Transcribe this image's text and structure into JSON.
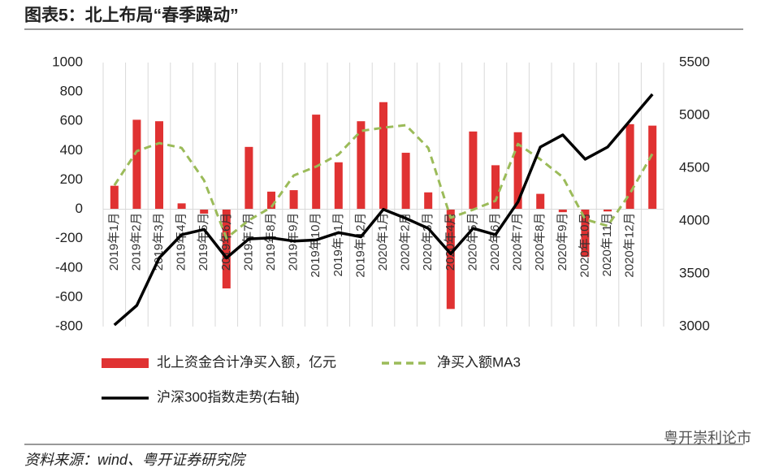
{
  "chart_data": {
    "type": "combo",
    "title": "图表5：北上布局“春季躁动”",
    "source": "资料来源：wind、粤开证券研究院",
    "watermark": "粤开崇利论市",
    "categories": [
      "2019年1月",
      "2019年2月",
      "2019年3月",
      "2019年4月",
      "2019年5月",
      "2019年6月",
      "2019年7月",
      "2019年8月",
      "2019年9月",
      "2019年10月",
      "2019年11月",
      "2019年12月",
      "2020年1月",
      "2020年2月",
      "2020年3月",
      "2020年4月",
      "2020年5月",
      "2020年6月",
      "2020年7月",
      "2020年8月",
      "2020年9月",
      "2020年10月",
      "2020年11月",
      "2020年12月",
      null
    ],
    "series": [
      {
        "name": "北上资金合计净买入额，亿元",
        "type": "bar",
        "color": "#e03232",
        "values": [
          160,
          610,
          600,
          40,
          -30,
          -540,
          425,
          120,
          130,
          645,
          320,
          600,
          730,
          385,
          115,
          -680,
          530,
          300,
          525,
          105,
          -20,
          -325,
          -15,
          580,
          570
        ]
      },
      {
        "name": "净买入额MA3",
        "type": "line",
        "dashed": true,
        "color": "#9bbb59",
        "values": [
          163,
          396,
          451,
          418,
          197,
          -197,
          -75,
          14,
          230,
          291,
          374,
          534,
          556,
          573,
          418,
          -58,
          -3,
          58,
          445,
          340,
          219,
          -69,
          -114,
          108,
          379
        ]
      },
      {
        "name": "沪深300指数走势(右轴)",
        "type": "line",
        "axis": "y2",
        "color": "#000000",
        "values": [
          3015,
          3200,
          3650,
          3870,
          3920,
          3650,
          3830,
          3840,
          3810,
          3820,
          3890,
          3850,
          4110,
          4025,
          3930,
          3690,
          3930,
          3870,
          4180,
          4700,
          4815,
          4585,
          4700,
          4950,
          5200
        ]
      }
    ],
    "ylim": [
      -800,
      1000
    ],
    "yticks": [
      -800,
      -600,
      -400,
      -200,
      0,
      200,
      400,
      600,
      800,
      1000
    ],
    "y2lim": [
      3000,
      5500
    ],
    "y2ticks": [
      3000,
      3500,
      4000,
      4500,
      5000,
      5500
    ]
  }
}
